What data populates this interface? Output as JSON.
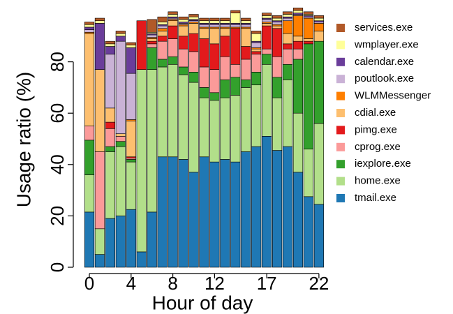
{
  "chart_data": {
    "type": "stacked_bar",
    "xlabel": "Hour of day",
    "ylabel": "Usage ratio (%)",
    "categories": [
      "0",
      null,
      null,
      null,
      "4",
      null,
      null,
      null,
      "8",
      null,
      null,
      null,
      "12",
      null,
      null,
      null,
      null,
      "17",
      null,
      null,
      null,
      null,
      "22"
    ],
    "ylim": [
      0,
      100
    ],
    "yticks": [
      0,
      20,
      40,
      60,
      80
    ],
    "series": [
      {
        "name": "tmail.exe",
        "color": "#1f78b4",
        "values": [
          21.5,
          5,
          19,
          20,
          22.5,
          6,
          21.5,
          43,
          43,
          42,
          37,
          43,
          41,
          42,
          41,
          45,
          47,
          51,
          45.5,
          47,
          37,
          27.5,
          24.5
        ]
      },
      {
        "name": "home.exe",
        "color": "#b2df8a",
        "values": [
          14.5,
          10,
          26,
          27,
          18.5,
          71,
          55.5,
          35,
          36,
          33,
          35,
          23,
          24,
          24,
          26,
          25,
          24,
          28,
          20.5,
          26,
          23,
          18.5,
          31.5
        ]
      },
      {
        "name": "iexplore.exe",
        "color": "#33a02c",
        "values": [
          13.5,
          0,
          2,
          2,
          1,
          0,
          8.5,
          3,
          3,
          3,
          4,
          4,
          3,
          7,
          7,
          3,
          5,
          4,
          8,
          6,
          21,
          41,
          32
        ]
      },
      {
        "name": "cprog.exe",
        "color": "#fb9a99",
        "values": [
          5.5,
          30,
          7,
          2,
          0.5,
          0,
          1.5,
          7,
          7,
          7,
          8,
          8,
          9,
          9,
          5,
          8,
          7,
          2,
          8,
          6,
          4,
          0,
          0
        ]
      },
      {
        "name": "pimg.exe",
        "color": "#e31a1c",
        "values": [
          0,
          0,
          2.5,
          0,
          0.5,
          19,
          1,
          2,
          5,
          5,
          7,
          11,
          10,
          8,
          14,
          5,
          1,
          9,
          11,
          2,
          3,
          1,
          0
        ]
      },
      {
        "name": "cdial.exe",
        "color": "#fdbf6f",
        "values": [
          36,
          32,
          5.5,
          1,
          14,
          0,
          1,
          2,
          2,
          4,
          4,
          4,
          6,
          3,
          0,
          7,
          1,
          1,
          1,
          4,
          2,
          1,
          4
        ]
      },
      {
        "name": "WLMMessenger",
        "color": "#ff7f00",
        "values": [
          0.5,
          0,
          0,
          0,
          0.5,
          0,
          0.5,
          1,
          0.5,
          0.5,
          0.5,
          0.5,
          0.5,
          0.5,
          0.5,
          0.5,
          0.5,
          0.5,
          0.5,
          5,
          8,
          8,
          3
        ]
      },
      {
        "name": "poutlook.exe",
        "color": "#cab2d6",
        "values": [
          1,
          0,
          21,
          36,
          18,
          0,
          1,
          1,
          0.5,
          0.5,
          0.5,
          1,
          1,
          1,
          1,
          1,
          2,
          1,
          1,
          1,
          0.5,
          0.5,
          0.5
        ]
      },
      {
        "name": "calendar.exe",
        "color": "#6a3d9a",
        "values": [
          1,
          18,
          3,
          2,
          10,
          0,
          0.5,
          0.5,
          0.5,
          0.5,
          0.5,
          0.5,
          0.5,
          0.5,
          0.5,
          0.5,
          0.5,
          0.5,
          0.5,
          0.5,
          0.5,
          0.5,
          0.5
        ]
      },
      {
        "name": "wmplayer.exe",
        "color": "#ffff99",
        "values": [
          1,
          1,
          1,
          1,
          1,
          0,
          0.5,
          1,
          1,
          1,
          1,
          1,
          1,
          1,
          4,
          1,
          3,
          1,
          1,
          1,
          1,
          0.5,
          1
        ]
      },
      {
        "name": "services.exe",
        "color": "#b15928",
        "values": [
          1,
          1,
          1,
          1,
          1,
          0,
          5,
          2,
          1,
          1,
          1,
          1,
          1,
          1,
          1,
          1,
          1,
          1,
          1,
          1,
          1,
          1,
          1
        ]
      }
    ]
  }
}
